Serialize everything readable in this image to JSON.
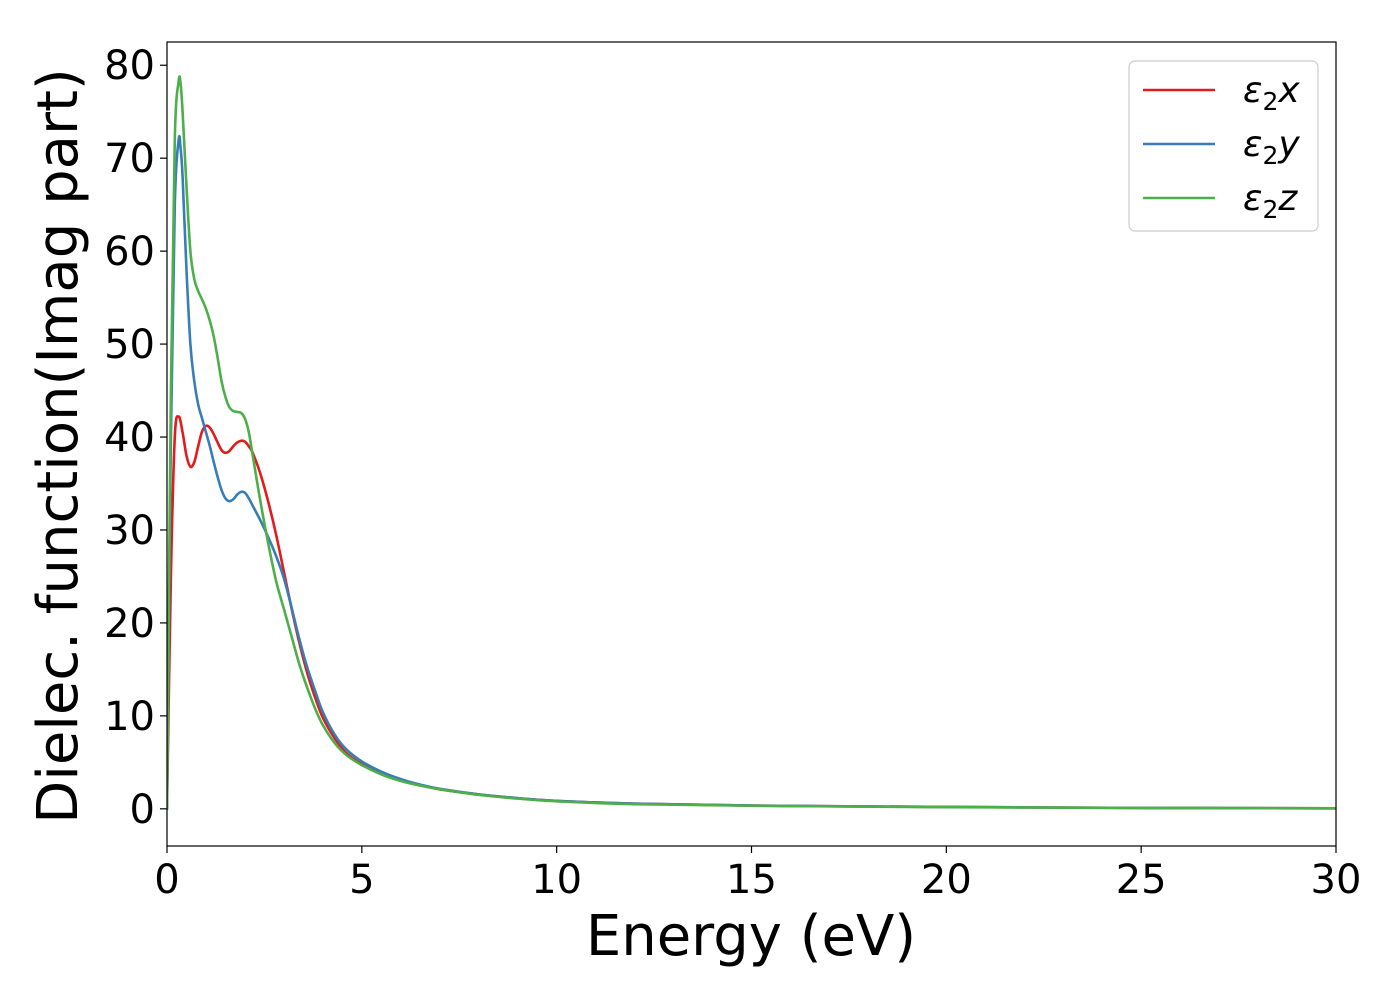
{
  "chart_data": {
    "type": "line",
    "title": "",
    "xlabel": "Energy (eV)",
    "ylabel": "Dielec. function(Imag part)",
    "xlim": [
      0,
      30
    ],
    "ylim": [
      -4,
      82.5
    ],
    "xticks": [
      0,
      5,
      10,
      15,
      20,
      25,
      30
    ],
    "yticks": [
      0,
      10,
      20,
      30,
      40,
      50,
      60,
      70,
      80
    ],
    "grid": false,
    "legend_position": "top-right",
    "series": [
      {
        "name": "ε₂x",
        "legend": {
          "base": "ε",
          "sub": "2",
          "tail": "x"
        },
        "color": "#e41a1c",
        "x": [
          0,
          0.1,
          0.2,
          0.3,
          0.4,
          0.5,
          0.6,
          0.7,
          0.8,
          0.9,
          1.0,
          1.1,
          1.2,
          1.3,
          1.4,
          1.5,
          1.6,
          1.7,
          1.8,
          1.9,
          2.0,
          2.1,
          2.2,
          2.4,
          2.6,
          2.8,
          3.0,
          3.2,
          3.4,
          3.6,
          3.8,
          4.0,
          4.3,
          4.6,
          5.0,
          5.5,
          6.0,
          6.5,
          7.0,
          8.0,
          9.0,
          10.0,
          12.0,
          15.0,
          20.0,
          25.0,
          30.0
        ],
        "values": [
          0,
          25,
          40,
          42.2,
          40.5,
          38,
          36.8,
          37.3,
          39,
          40.6,
          41.2,
          41,
          40.3,
          39.4,
          38.6,
          38.3,
          38.5,
          39,
          39.4,
          39.6,
          39.5,
          39,
          38.3,
          36,
          33,
          29.5,
          25.5,
          21.5,
          17.8,
          14.6,
          12,
          9.8,
          7.6,
          6,
          4.8,
          3.8,
          3.1,
          2.55,
          2.1,
          1.55,
          1.15,
          0.85,
          0.55,
          0.35,
          0.2,
          0.1,
          0.05
        ]
      },
      {
        "name": "ε₂y",
        "legend": {
          "base": "ε",
          "sub": "2",
          "tail": "y"
        },
        "color": "#377eb8",
        "x": [
          0,
          0.1,
          0.2,
          0.3,
          0.35,
          0.4,
          0.5,
          0.6,
          0.7,
          0.8,
          0.9,
          1.0,
          1.1,
          1.2,
          1.3,
          1.4,
          1.5,
          1.6,
          1.7,
          1.8,
          1.9,
          2.0,
          2.1,
          2.2,
          2.4,
          2.6,
          2.8,
          3.0,
          3.2,
          3.4,
          3.6,
          3.8,
          4.0,
          4.3,
          4.6,
          5.0,
          5.5,
          6.0,
          6.5,
          7.0,
          8.0,
          9.0,
          10.0,
          12.0,
          15.0,
          20.0,
          25.0,
          30.0
        ],
        "values": [
          0,
          40,
          65,
          72,
          71,
          68,
          58,
          50,
          46,
          43.5,
          42,
          40.5,
          39,
          37.3,
          35.7,
          34.3,
          33.4,
          33.1,
          33.3,
          33.8,
          34.1,
          34,
          33.4,
          32.6,
          31,
          29.2,
          27.2,
          24.8,
          21.6,
          18.2,
          15.2,
          12.7,
          10.4,
          8,
          6.4,
          5.1,
          4,
          3.2,
          2.6,
          2.15,
          1.55,
          1.15,
          0.85,
          0.55,
          0.35,
          0.2,
          0.1,
          0.05
        ]
      },
      {
        "name": "ε₂z",
        "legend": {
          "base": "ε",
          "sub": "2",
          "tail": "z"
        },
        "color": "#4daf4a",
        "x": [
          0,
          0.1,
          0.2,
          0.3,
          0.35,
          0.4,
          0.5,
          0.6,
          0.7,
          0.8,
          0.9,
          1.0,
          1.1,
          1.2,
          1.3,
          1.4,
          1.5,
          1.6,
          1.7,
          1.8,
          1.9,
          2.0,
          2.1,
          2.2,
          2.4,
          2.6,
          2.8,
          3.0,
          3.2,
          3.4,
          3.6,
          3.8,
          4.0,
          4.3,
          4.6,
          5.0,
          5.5,
          6.0,
          6.5,
          7.0,
          8.0,
          9.0,
          10.0,
          12.0,
          15.0,
          20.0,
          25.0,
          30.0
        ],
        "values": [
          0,
          45,
          72,
          78.3,
          78,
          75,
          67,
          60,
          57,
          55.7,
          54.8,
          53.8,
          52.5,
          50.8,
          48.5,
          46,
          44.3,
          43.2,
          42.8,
          42.7,
          42.6,
          42,
          40.5,
          38,
          33,
          28.5,
          24.5,
          21.5,
          18.5,
          15.5,
          13,
          10.8,
          9,
          7.1,
          5.8,
          4.7,
          3.7,
          3,
          2.5,
          2.1,
          1.5,
          1.1,
          0.8,
          0.5,
          0.33,
          0.18,
          0.1,
          0.05
        ]
      }
    ]
  }
}
